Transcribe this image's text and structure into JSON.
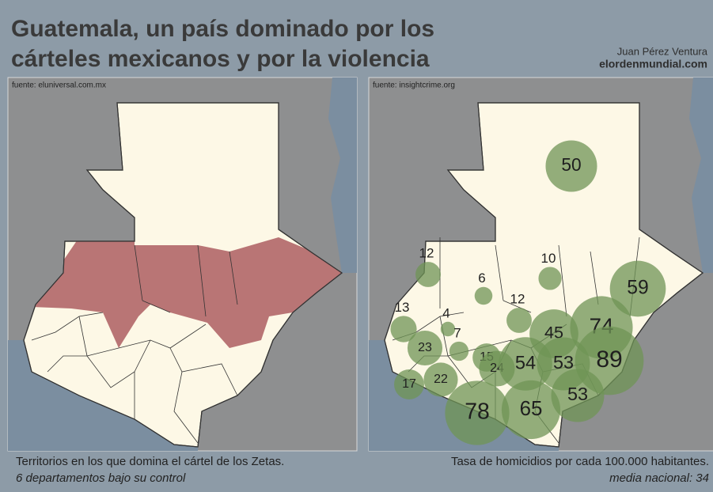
{
  "header": {
    "title_line1": "Guatemala, un país dominado por los",
    "title_line2": "cárteles mexicanos y por la violencia",
    "author": "Juan Pérez Ventura",
    "site": "elordenmundial.com"
  },
  "left_map": {
    "source": "fuente: eluniversal.com.mx",
    "caption": "Territorios en los que domina el cártel de los Zetas.",
    "subcaption": "6 departamentos bajo su control"
  },
  "right_map": {
    "source": "fuente: insightcrime.org",
    "caption": "Tasa de homicidios por cada 100.000 habitantes.",
    "subcaption": "media nacional: 34",
    "bubbles": [
      {
        "value": 50
      },
      {
        "value": 12
      },
      {
        "value": 10
      },
      {
        "value": 6
      },
      {
        "value": 59
      },
      {
        "value": 13
      },
      {
        "value": 4
      },
      {
        "value": 12
      },
      {
        "value": 7
      },
      {
        "value": 45
      },
      {
        "value": 74
      },
      {
        "value": 23
      },
      {
        "value": 15
      },
      {
        "value": 24
      },
      {
        "value": 54
      },
      {
        "value": 53
      },
      {
        "value": 89
      },
      {
        "value": 17
      },
      {
        "value": 22
      },
      {
        "value": 78
      },
      {
        "value": 65
      },
      {
        "value": 53
      }
    ]
  }
}
